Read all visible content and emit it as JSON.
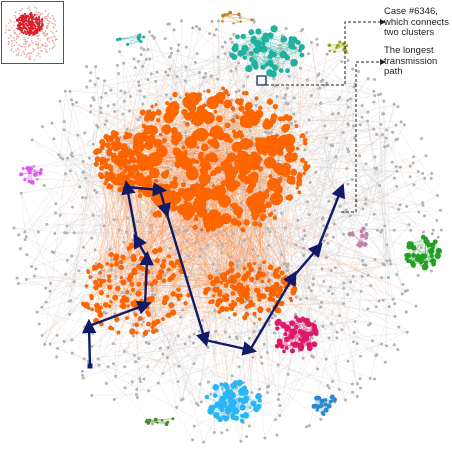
{
  "annotations": {
    "connector_case": "Case #6346,\nwhich connects\ntwo clusters",
    "longest_path": "The longest\ntransmission\npath"
  },
  "colors": {
    "background": "#ffffff",
    "main_cluster": "#ff6600",
    "minor_node": "#b3b3b3",
    "edge": "#cfcfcf",
    "path": "#101a66",
    "teal_cluster": "#20b0a0",
    "green_cluster": "#22a022",
    "pink_cluster": "#e0186a",
    "skyblue_cluster": "#29b6f6",
    "blue_cluster": "#2a8ad0",
    "violet_cluster": "#e055f0",
    "mauve_cluster": "#c080a8",
    "olive_cluster": "#a0a020",
    "brown_cluster": "#c08020",
    "darkgreen_cluster": "#4a8a2a",
    "thumbnail_nodes": "#d8202a"
  },
  "icons": {
    "overview_thumbnail": "overview-network-icon"
  }
}
